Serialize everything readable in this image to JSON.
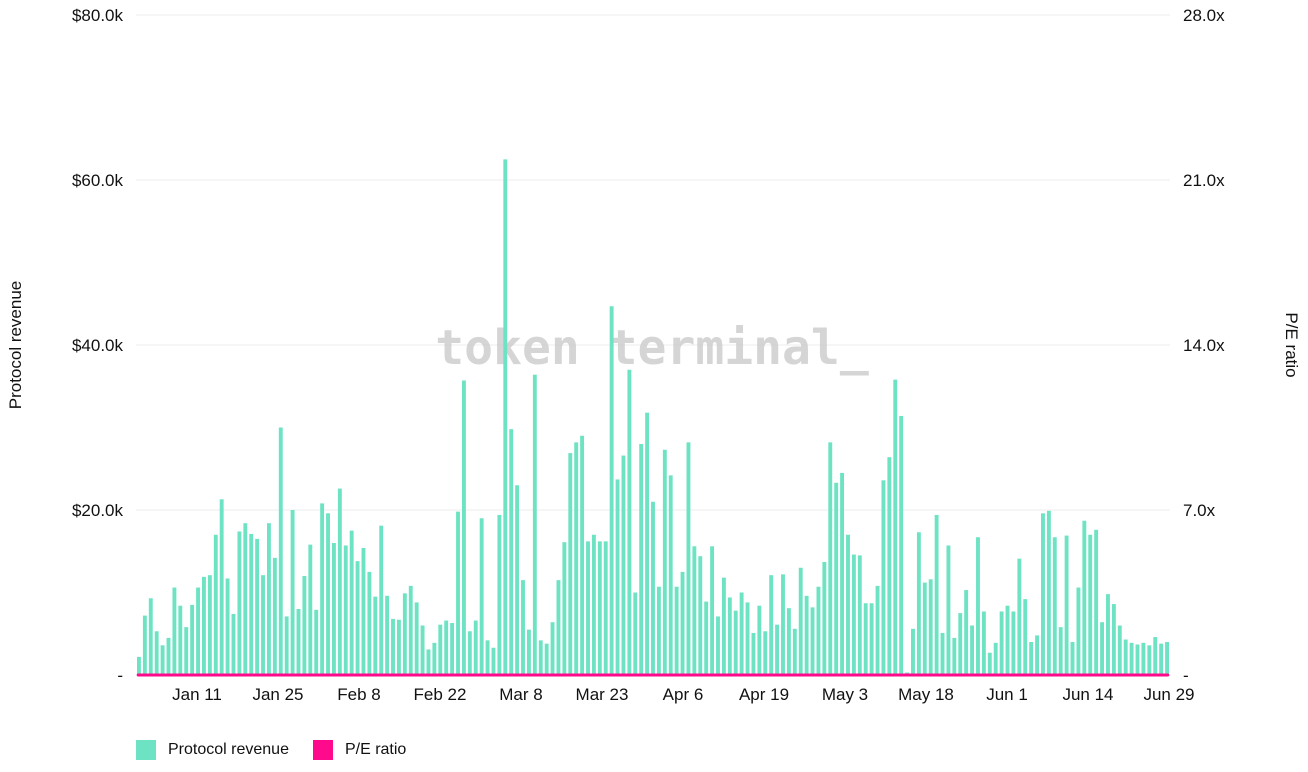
{
  "watermark": "token terminal_",
  "colors": {
    "revenue": "#6ee3c3",
    "pe": "#ff0a8c",
    "grid": "#ececec",
    "text": "#111111"
  },
  "legend": {
    "revenue_label": "Protocol revenue",
    "pe_label": "P/E ratio"
  },
  "chart_data": {
    "type": "bar+line",
    "title": "",
    "ylabel": "Protocol revenue",
    "y2label": "P/E ratio",
    "ylim": [
      0,
      80000
    ],
    "y2lim": [
      0,
      28
    ],
    "y_ticks": [
      "-",
      "$20.0k",
      "$40.0k",
      "$60.0k",
      "$80.0k"
    ],
    "y2_ticks": [
      "-",
      "7.0x",
      "14.0x",
      "21.0x",
      "28.0x"
    ],
    "x_ticks": [
      "Jan 11",
      "Jan 25",
      "Feb 8",
      "Feb 22",
      "Mar 8",
      "Mar 23",
      "Apr 6",
      "Apr 19",
      "May 3",
      "May 18",
      "Jun 1",
      "Jun 14",
      "Jun 29"
    ],
    "grid": true,
    "legend_position": "bottom-left",
    "series": [
      {
        "name": "Protocol revenue",
        "type": "bar",
        "axis": "left",
        "values": [
          2200,
          7200,
          9300,
          5300,
          3600,
          4500,
          10600,
          8400,
          5800,
          8500,
          10600,
          11900,
          12100,
          17000,
          21300,
          11700,
          7400,
          17400,
          18400,
          17100,
          16500,
          12100,
          18400,
          14200,
          30000,
          7100,
          20000,
          8000,
          12000,
          15800,
          7900,
          20800,
          19600,
          16000,
          22600,
          15700,
          17500,
          13800,
          15400,
          12500,
          9500,
          18100,
          9600,
          6800,
          6700,
          9900,
          10800,
          8800,
          6000,
          3100,
          3900,
          6100,
          6600,
          6300,
          19800,
          35700,
          5300,
          6600,
          19000,
          4200,
          3300,
          19400,
          62500,
          29800,
          23000,
          11500,
          5500,
          36400,
          4200,
          3800,
          6400,
          11500,
          16100,
          26900,
          28200,
          29000,
          16200,
          17000,
          16200,
          16200,
          44700,
          23700,
          26600,
          37000,
          10000,
          28000,
          31800,
          21000,
          10700,
          27300,
          24200,
          10700,
          12500,
          28200,
          15600,
          14400,
          8900,
          15600,
          7100,
          11800,
          9400,
          7800,
          10000,
          8800,
          5100,
          8400,
          5300,
          12100,
          6100,
          12200,
          8100,
          5600,
          13000,
          9600,
          8200,
          10700,
          13700,
          28200,
          23300,
          24500,
          17000,
          14600,
          14500,
          8700,
          8700,
          10800,
          23600,
          26400,
          35800,
          31400,
          300,
          5600,
          17300,
          11200,
          11600,
          19400,
          5100,
          15700,
          4500,
          7500,
          10300,
          6000,
          16700,
          7700,
          2700,
          3900,
          7700,
          8400,
          7700,
          14100,
          9200,
          4000,
          4800,
          19600,
          19900,
          16700,
          5800,
          16900,
          4000,
          10600,
          18700,
          17000,
          17600,
          6400,
          9800,
          8600,
          6000,
          4300,
          3900,
          3700,
          3900,
          3600,
          4600,
          3800,
          4000
        ]
      },
      {
        "name": "P/E ratio",
        "type": "line",
        "axis": "right",
        "values": [
          0,
          0,
          0,
          0,
          0,
          0,
          0,
          0,
          0,
          0,
          0,
          0,
          0,
          0,
          0,
          0,
          0,
          0,
          0,
          0,
          0,
          0,
          0,
          0,
          0,
          0,
          0,
          0,
          0,
          0,
          0,
          0,
          0,
          0,
          0,
          0,
          0,
          0,
          0,
          0,
          0,
          0,
          0,
          0,
          0,
          0,
          0,
          0,
          0,
          0,
          0,
          0,
          0,
          0,
          0,
          0,
          0,
          0,
          0,
          0,
          0,
          0,
          0,
          0,
          0,
          0,
          0,
          0,
          0,
          0,
          0,
          0,
          0,
          0,
          0,
          0,
          0,
          0,
          0,
          0,
          0,
          0,
          0,
          0,
          0,
          0,
          0,
          0,
          0,
          0,
          0,
          0,
          0,
          0,
          0,
          0,
          0,
          0,
          0,
          0,
          0,
          0,
          0,
          0,
          0,
          0,
          0,
          0,
          0,
          0,
          0,
          0,
          0,
          0,
          0,
          0,
          0,
          0,
          0,
          0,
          0,
          0,
          0,
          0,
          0,
          0,
          0,
          0,
          0,
          0,
          0,
          0,
          0,
          0,
          0,
          0,
          0,
          0,
          0,
          0,
          0,
          0,
          0,
          0,
          0,
          0,
          0,
          0,
          0,
          0,
          0,
          0,
          0,
          0,
          0,
          0,
          0,
          0,
          0,
          0,
          0,
          0,
          0,
          0,
          0,
          0,
          0,
          0,
          0,
          0,
          0,
          0,
          0,
          0,
          0,
          0,
          0,
          0,
          0,
          0,
          0,
          0,
          0,
          0,
          0,
          0,
          0,
          0,
          0,
          0,
          0,
          0,
          0,
          0,
          0,
          0,
          0,
          0,
          0,
          0,
          0,
          0,
          0,
          0,
          0,
          0,
          0,
          0,
          0,
          0,
          0,
          0,
          0,
          0,
          0,
          0,
          0,
          0,
          0,
          0,
          0,
          0,
          0,
          0,
          0,
          0,
          0,
          0,
          0,
          0,
          0,
          0,
          0
        ]
      }
    ]
  }
}
